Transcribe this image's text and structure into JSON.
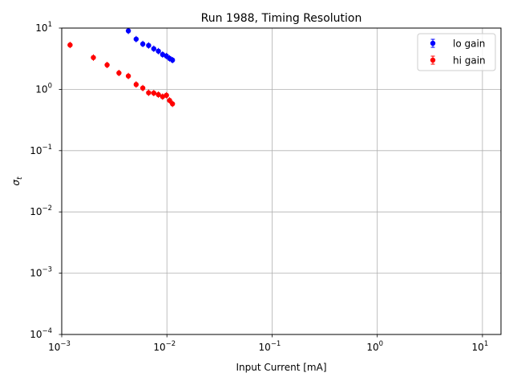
{
  "chart_data": {
    "type": "scatter",
    "title": "Run 1988, Timing Resolution",
    "xlabel": "Input Current [mA]",
    "ylabel": "σ_t",
    "xscale": "log",
    "yscale": "log",
    "xlim": [
      0.001,
      15
    ],
    "ylim": [
      0.0001,
      10
    ],
    "x_ticks": [
      {
        "value": 0.001,
        "base": "10",
        "exp": "−3"
      },
      {
        "value": 0.01,
        "base": "10",
        "exp": "−2"
      },
      {
        "value": 0.1,
        "base": "10",
        "exp": "−1"
      },
      {
        "value": 1,
        "base": "10",
        "exp": "0"
      },
      {
        "value": 10,
        "base": "10",
        "exp": "1"
      }
    ],
    "y_ticks": [
      {
        "value": 0.0001,
        "base": "10",
        "exp": "−4"
      },
      {
        "value": 0.001,
        "base": "10",
        "exp": "−3"
      },
      {
        "value": 0.01,
        "base": "10",
        "exp": "−2"
      },
      {
        "value": 0.1,
        "base": "10",
        "exp": "−1"
      },
      {
        "value": 1,
        "base": "10",
        "exp": "0"
      },
      {
        "value": 10,
        "base": "10",
        "exp": "1"
      }
    ],
    "grid": true,
    "legend_position": "top-right",
    "series": [
      {
        "name": "lo gain",
        "color": "#0000ff",
        "x": [
          0.0043,
          0.0051,
          0.0059,
          0.0067,
          0.0075,
          0.0083,
          0.0091,
          0.0099,
          0.0106,
          0.0113
        ],
        "y": [
          9.0,
          6.6,
          5.5,
          5.2,
          4.6,
          4.2,
          3.7,
          3.5,
          3.2,
          3.0
        ]
      },
      {
        "name": "hi gain",
        "color": "#ff0000",
        "x": [
          0.0012,
          0.002,
          0.0027,
          0.0035,
          0.0043,
          0.0051,
          0.0059,
          0.0067,
          0.0075,
          0.0083,
          0.0091,
          0.0099,
          0.0106,
          0.0113
        ],
        "y": [
          5.3,
          3.3,
          2.5,
          1.85,
          1.65,
          1.2,
          1.05,
          0.88,
          0.87,
          0.82,
          0.76,
          0.8,
          0.66,
          0.58
        ]
      }
    ]
  }
}
